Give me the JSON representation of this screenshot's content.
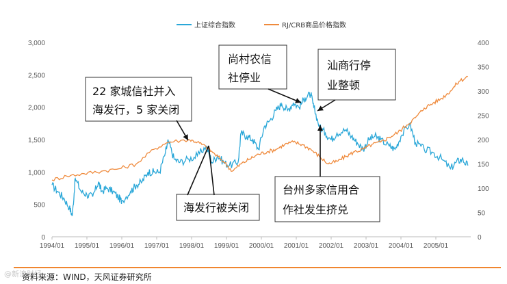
{
  "chart_data": {
    "type": "line",
    "title": "",
    "xlabel": "",
    "ylabel": "",
    "x_ticks": [
      "1994/01",
      "1995/01",
      "1996/01",
      "1997/01",
      "1998/01",
      "1999/01",
      "2000/01",
      "2001/01",
      "2002/01",
      "2003/01",
      "2004/01",
      "2005/01"
    ],
    "y_left": {
      "ticks": [
        "0",
        "500",
        "1,000",
        "1,500",
        "2,000",
        "2,500",
        "3,000"
      ],
      "ylim": [
        0,
        3000
      ]
    },
    "y_right": {
      "ticks": [
        "0",
        "50",
        "100",
        "150",
        "200",
        "250",
        "300",
        "350",
        "400"
      ],
      "ylim": [
        0,
        400
      ]
    },
    "grid": false,
    "legend_position": "top-center",
    "series": [
      {
        "name": "上证综合指数",
        "axis": "left",
        "color": "#2aa7d8",
        "points": [
          [
            "1994-01",
            800
          ],
          [
            "1994-03",
            700
          ],
          [
            "1994-05",
            600
          ],
          [
            "1994-07",
            450
          ],
          [
            "1994-08",
            330
          ],
          [
            "1994-09",
            900
          ],
          [
            "1994-11",
            700
          ],
          [
            "1995-01",
            650
          ],
          [
            "1995-03",
            620
          ],
          [
            "1995-05",
            850
          ],
          [
            "1995-06",
            700
          ],
          [
            "1995-08",
            750
          ],
          [
            "1995-10",
            700
          ],
          [
            "1995-12",
            600
          ],
          [
            "1996-01",
            550
          ],
          [
            "1996-04",
            700
          ],
          [
            "1996-06",
            800
          ],
          [
            "1996-08",
            850
          ],
          [
            "1996-10",
            1000
          ],
          [
            "1996-12",
            1000
          ],
          [
            "1997-02",
            1000
          ],
          [
            "1997-04",
            1300
          ],
          [
            "1997-05",
            1480
          ],
          [
            "1997-07",
            1200
          ],
          [
            "1997-09",
            1150
          ],
          [
            "1997-12",
            1200
          ],
          [
            "1998-03",
            1250
          ],
          [
            "1998-06",
            1400
          ],
          [
            "1998-08",
            1150
          ],
          [
            "1998-10",
            1250
          ],
          [
            "1998-12",
            1150
          ],
          [
            "1999-02",
            1100
          ],
          [
            "1999-05",
            1150
          ],
          [
            "1999-06",
            1600
          ],
          [
            "1999-08",
            1550
          ],
          [
            "1999-10",
            1500
          ],
          [
            "1999-12",
            1350
          ],
          [
            "2000-02",
            1700
          ],
          [
            "2000-04",
            1800
          ],
          [
            "2000-06",
            1950
          ],
          [
            "2000-08",
            2050
          ],
          [
            "2000-10",
            1950
          ],
          [
            "2000-12",
            2070
          ],
          [
            "2001-02",
            2000
          ],
          [
            "2001-04",
            2150
          ],
          [
            "2001-06",
            2200
          ],
          [
            "2001-07",
            2000
          ],
          [
            "2001-09",
            1700
          ],
          [
            "2001-11",
            1600
          ],
          [
            "2002-01",
            1500
          ],
          [
            "2002-03",
            1600
          ],
          [
            "2002-06",
            1650
          ],
          [
            "2002-08",
            1550
          ],
          [
            "2002-10",
            1450
          ],
          [
            "2002-12",
            1350
          ],
          [
            "2003-02",
            1500
          ],
          [
            "2003-04",
            1550
          ],
          [
            "2003-06",
            1500
          ],
          [
            "2003-09",
            1400
          ],
          [
            "2003-11",
            1350
          ],
          [
            "2004-01",
            1550
          ],
          [
            "2004-04",
            1750
          ],
          [
            "2004-06",
            1450
          ],
          [
            "2004-09",
            1350
          ],
          [
            "2004-12",
            1300
          ],
          [
            "2005-03",
            1200
          ],
          [
            "2005-06",
            1050
          ],
          [
            "2005-08",
            1150
          ],
          [
            "2005-10",
            1200
          ],
          [
            "2005-12",
            1100
          ]
        ]
      },
      {
        "name": "RJ/CRB商品价格指数",
        "axis": "right",
        "color": "#ef8a3c",
        "points": [
          [
            "1994-01",
            117
          ],
          [
            "1994-06",
            125
          ],
          [
            "1994-12",
            130
          ],
          [
            "1995-06",
            135
          ],
          [
            "1995-12",
            140
          ],
          [
            "1996-06",
            150
          ],
          [
            "1996-12",
            180
          ],
          [
            "1997-05",
            195
          ],
          [
            "1997-12",
            200
          ],
          [
            "1998-03",
            195
          ],
          [
            "1998-06",
            185
          ],
          [
            "1998-09",
            170
          ],
          [
            "1998-12",
            155
          ],
          [
            "1999-03",
            135
          ],
          [
            "1999-06",
            150
          ],
          [
            "1999-09",
            160
          ],
          [
            "1999-12",
            170
          ],
          [
            "2000-03",
            175
          ],
          [
            "2000-06",
            180
          ],
          [
            "2000-09",
            190
          ],
          [
            "2000-12",
            195
          ],
          [
            "2001-03",
            190
          ],
          [
            "2001-06",
            180
          ],
          [
            "2001-09",
            165
          ],
          [
            "2001-12",
            150
          ],
          [
            "2002-03",
            155
          ],
          [
            "2002-06",
            165
          ],
          [
            "2002-09",
            175
          ],
          [
            "2002-12",
            180
          ],
          [
            "2003-03",
            190
          ],
          [
            "2003-06",
            195
          ],
          [
            "2003-09",
            205
          ],
          [
            "2003-12",
            215
          ],
          [
            "2004-03",
            230
          ],
          [
            "2004-06",
            245
          ],
          [
            "2004-09",
            265
          ],
          [
            "2004-12",
            275
          ],
          [
            "2005-03",
            285
          ],
          [
            "2005-06",
            300
          ],
          [
            "2005-09",
            320
          ],
          [
            "2005-12",
            330
          ]
        ]
      }
    ],
    "annotations": [
      {
        "lines": [
          "22 家城信社并入",
          "海发行，5 家关闭"
        ]
      },
      {
        "lines": [
          "尚村农信",
          "社停业"
        ]
      },
      {
        "lines": [
          "汕商行停",
          "业整顿"
        ]
      },
      {
        "lines": [
          "海发行被关闭"
        ]
      },
      {
        "lines": [
          "台州多家信用合",
          "作社发生挤兑"
        ]
      }
    ]
  },
  "source_text": "资料来源：WIND，天风证券研究所",
  "watermark_text": "@新浪财经",
  "colors": {
    "accent_rule": "#f0862f"
  }
}
